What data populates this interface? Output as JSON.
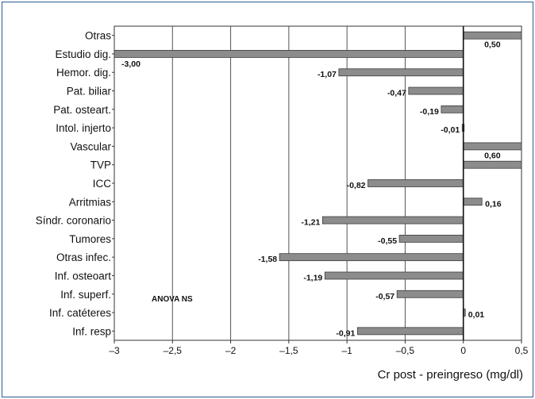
{
  "chart_data": {
    "type": "bar",
    "orientation": "horizontal",
    "categories": [
      "Otras",
      "Estudio dig.",
      "Hemor. dig.",
      "Pat. biliar",
      "Pat. osteart.",
      "Intol. injerto",
      "Vascular",
      "TVP",
      "ICC",
      "Arritmias",
      "Síndr. coronario",
      "Tumores",
      "Otras infec.",
      "Inf. osteoart",
      "Inf. superf.",
      "Inf. catéteres",
      "Inf. resp"
    ],
    "values": [
      0.5,
      -3.0,
      -1.07,
      -0.47,
      -0.19,
      -0.01,
      0.6,
      0.5,
      -0.82,
      0.16,
      -1.21,
      -0.55,
      -1.58,
      -1.19,
      -0.57,
      0.01,
      -0.91
    ],
    "data_labels": [
      "0,50",
      "-3,00",
      "-1,07",
      "-0,47",
      "-0,19",
      "-0,01",
      "0,60",
      "",
      "-0,82",
      "0,16",
      "-1,21",
      "-0,55",
      "-1,58",
      "-1,19",
      "-0,57",
      "0,01",
      "-0,91"
    ],
    "xlabel": "Cr post - preingreso (mg/dl)",
    "ylabel": "",
    "xlim": [
      -3,
      0.5
    ],
    "xticks": [
      -3,
      -2.5,
      -2,
      -1.5,
      -1,
      -0.5,
      0,
      0.5
    ],
    "xtick_labels": [
      "–3",
      "–2,5",
      "–2",
      "–1,5",
      "–1",
      "–0,5",
      "0",
      "0,5"
    ],
    "annotation": "ANOVA NS",
    "grid": "vertical",
    "bar_color": "#8c8c8c",
    "frame_color": "#2c5c93"
  }
}
